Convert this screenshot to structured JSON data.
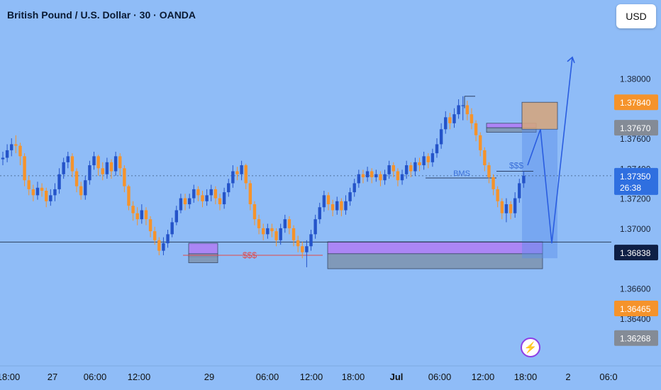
{
  "header": {
    "title": "British Pound / U.S. Dollar · 30 · OANDA"
  },
  "toolbar": {
    "currency_label": "USD"
  },
  "icons": {
    "event_marker": "lightning-icon"
  },
  "colors": {
    "background": "#8fbcf7",
    "bull": "#2453c9",
    "bear": "#f5932b",
    "zone_purple": "#b07df5",
    "zone_grey": "#7e93ae",
    "target_zone": "#d3a57f",
    "projection": "#2a5de0",
    "liquidity_text": "#e04a4a",
    "bms_text": "#3a6fd8"
  },
  "chart_data": {
    "type": "candlestick",
    "title": "British Pound / U.S. Dollar · 30 · OANDA",
    "y_axis": {
      "ticks": [
        "1.38000",
        "1.37600",
        "1.37400",
        "1.37200",
        "1.37000",
        "1.36600",
        "1.36400"
      ],
      "range": [
        1.3612,
        1.3838
      ]
    },
    "x_axis": {
      "ticks": [
        "18:00",
        "27",
        "06:00",
        "12:00",
        "29",
        "06:00",
        "12:00",
        "18:00",
        "Jul",
        "06:00",
        "12:00",
        "18:00",
        "2",
        "06:0"
      ]
    },
    "price_labels": [
      {
        "value": "1.37840",
        "style": "orange"
      },
      {
        "value": "1.37670",
        "style": "grey"
      },
      {
        "value": "1.37350",
        "style": "blue",
        "countdown": "26:38"
      },
      {
        "value": "1.36838",
        "style": "navy"
      },
      {
        "value": "1.36465",
        "style": "orange"
      },
      {
        "value": "1.36268",
        "style": "grey"
      }
    ],
    "annotations": [
      {
        "text": "$$$",
        "kind": "liquidity",
        "price": 1.3682
      },
      {
        "text": "$$$",
        "kind": "liquidity",
        "price": 1.3738
      },
      {
        "text": "BMS",
        "kind": "break-of-market-structure",
        "price": 1.37335
      }
    ],
    "zones": [
      {
        "kind": "demand-purple",
        "top": 1.369,
        "bottom": 1.3681
      },
      {
        "kind": "demand-grey",
        "top": 1.3683,
        "bottom": 1.3677
      },
      {
        "kind": "demand-purple",
        "top": 1.3691,
        "bottom": 1.3683
      },
      {
        "kind": "demand-grey",
        "top": 1.3683,
        "bottom": 1.3673
      },
      {
        "kind": "supply-purple",
        "top": 1.377,
        "bottom": 1.3767
      },
      {
        "kind": "supply-grey",
        "top": 1.3767,
        "bottom": 1.3764
      },
      {
        "kind": "target",
        "top": 1.3784,
        "bottom": 1.3766
      }
    ],
    "projection_path": [
      1.3742,
      1.3766,
      1.369,
      1.3814
    ],
    "candles": [
      [
        1.3746,
        1.3747,
        1.3751,
        1.3742
      ],
      [
        1.3747,
        1.3752,
        1.3756,
        1.3744
      ],
      [
        1.3752,
        1.3756,
        1.376,
        1.3748
      ],
      [
        1.3756,
        1.3755,
        1.3762,
        1.375
      ],
      [
        1.3755,
        1.3748,
        1.3757,
        1.3742
      ],
      [
        1.3748,
        1.3732,
        1.375,
        1.3728
      ],
      [
        1.3732,
        1.3726,
        1.3735,
        1.3722
      ],
      [
        1.3726,
        1.3722,
        1.3729,
        1.3718
      ],
      [
        1.3722,
        1.3727,
        1.3731,
        1.3719
      ],
      [
        1.3727,
        1.3725,
        1.373,
        1.3721
      ],
      [
        1.3725,
        1.3718,
        1.3727,
        1.3714
      ],
      [
        1.3718,
        1.3722,
        1.3726,
        1.3715
      ],
      [
        1.3722,
        1.3726,
        1.373,
        1.3718
      ],
      [
        1.3726,
        1.3736,
        1.374,
        1.3723
      ],
      [
        1.3736,
        1.3744,
        1.3747,
        1.3733
      ],
      [
        1.3744,
        1.3748,
        1.3751,
        1.374
      ],
      [
        1.3748,
        1.3738,
        1.375,
        1.3734
      ],
      [
        1.3738,
        1.3728,
        1.374,
        1.3724
      ],
      [
        1.3728,
        1.3722,
        1.3731,
        1.3719
      ],
      [
        1.3722,
        1.3732,
        1.3735,
        1.3719
      ],
      [
        1.3732,
        1.3742,
        1.3745,
        1.3729
      ],
      [
        1.3742,
        1.3748,
        1.3751,
        1.3739
      ],
      [
        1.3748,
        1.374,
        1.3749,
        1.3735
      ],
      [
        1.374,
        1.3736,
        1.3744,
        1.3732
      ],
      [
        1.3736,
        1.3744,
        1.3747,
        1.3733
      ],
      [
        1.3744,
        1.3738,
        1.3746,
        1.3733
      ],
      [
        1.3738,
        1.3748,
        1.3751,
        1.3735
      ],
      [
        1.3748,
        1.374,
        1.375,
        1.3735
      ],
      [
        1.374,
        1.3728,
        1.3742,
        1.3724
      ],
      [
        1.3728,
        1.3715,
        1.3729,
        1.3712
      ],
      [
        1.3715,
        1.371,
        1.3718,
        1.3705
      ],
      [
        1.371,
        1.3706,
        1.3714,
        1.3702
      ],
      [
        1.3706,
        1.3712,
        1.3716,
        1.3703
      ],
      [
        1.3712,
        1.3706,
        1.3714,
        1.3702
      ],
      [
        1.3706,
        1.3698,
        1.3708,
        1.3694
      ],
      [
        1.3698,
        1.3692,
        1.3701,
        1.3689
      ],
      [
        1.3692,
        1.3685,
        1.3694,
        1.3682
      ],
      [
        1.3685,
        1.369,
        1.3694,
        1.3682
      ],
      [
        1.369,
        1.3696,
        1.3699,
        1.3687
      ],
      [
        1.3696,
        1.3704,
        1.3707,
        1.3694
      ],
      [
        1.3704,
        1.3712,
        1.3715,
        1.3702
      ],
      [
        1.3712,
        1.372,
        1.3723,
        1.371
      ],
      [
        1.372,
        1.3716,
        1.3723,
        1.3712
      ],
      [
        1.3716,
        1.372,
        1.3723,
        1.3713
      ],
      [
        1.372,
        1.3726,
        1.3729,
        1.3717
      ],
      [
        1.3726,
        1.3722,
        1.3728,
        1.3718
      ],
      [
        1.3722,
        1.3718,
        1.3725,
        1.3714
      ],
      [
        1.3718,
        1.3722,
        1.3726,
        1.3715
      ],
      [
        1.3722,
        1.3726,
        1.3729,
        1.3718
      ],
      [
        1.3726,
        1.372,
        1.3728,
        1.3716
      ],
      [
        1.372,
        1.3716,
        1.3723,
        1.3712
      ],
      [
        1.3716,
        1.3724,
        1.3727,
        1.3713
      ],
      [
        1.3724,
        1.373,
        1.3733,
        1.3721
      ],
      [
        1.373,
        1.3738,
        1.3742,
        1.3727
      ],
      [
        1.3738,
        1.3736,
        1.3741,
        1.3732
      ],
      [
        1.3736,
        1.3742,
        1.3745,
        1.3732
      ],
      [
        1.3742,
        1.373,
        1.3743,
        1.3726
      ],
      [
        1.373,
        1.3716,
        1.3732,
        1.3712
      ],
      [
        1.3716,
        1.3706,
        1.3718,
        1.3702
      ],
      [
        1.3706,
        1.37,
        1.3709,
        1.3696
      ],
      [
        1.37,
        1.3696,
        1.3703,
        1.3692
      ],
      [
        1.3696,
        1.37,
        1.3703,
        1.3693
      ],
      [
        1.37,
        1.3698,
        1.3703,
        1.3694
      ],
      [
        1.3698,
        1.3692,
        1.37,
        1.3688
      ],
      [
        1.3692,
        1.37,
        1.3703,
        1.3689
      ],
      [
        1.37,
        1.3706,
        1.3709,
        1.3697
      ],
      [
        1.3706,
        1.37,
        1.3708,
        1.3696
      ],
      [
        1.37,
        1.3692,
        1.3702,
        1.3688
      ],
      [
        1.3692,
        1.3688,
        1.3695,
        1.3684
      ],
      [
        1.3688,
        1.3684,
        1.3691,
        1.368
      ],
      [
        1.3684,
        1.3688,
        1.3692,
        1.3674
      ],
      [
        1.3688,
        1.3696,
        1.3699,
        1.3685
      ],
      [
        1.3696,
        1.3706,
        1.3709,
        1.3693
      ],
      [
        1.3706,
        1.3714,
        1.3717,
        1.3703
      ],
      [
        1.3714,
        1.3722,
        1.3725,
        1.3711
      ],
      [
        1.3722,
        1.3716,
        1.3724,
        1.3712
      ],
      [
        1.3716,
        1.3712,
        1.3719,
        1.3708
      ],
      [
        1.3712,
        1.3718,
        1.3721,
        1.3709
      ],
      [
        1.3718,
        1.3712,
        1.372,
        1.3708
      ],
      [
        1.3712,
        1.3718,
        1.3722,
        1.3709
      ],
      [
        1.3718,
        1.3724,
        1.3727,
        1.3715
      ],
      [
        1.3724,
        1.373,
        1.3733,
        1.3721
      ],
      [
        1.373,
        1.3736,
        1.3739,
        1.3727
      ],
      [
        1.3736,
        1.3734,
        1.3739,
        1.373
      ],
      [
        1.3734,
        1.3738,
        1.3741,
        1.3731
      ],
      [
        1.3738,
        1.3734,
        1.374,
        1.373
      ],
      [
        1.3734,
        1.3736,
        1.3739,
        1.3731
      ],
      [
        1.3736,
        1.3732,
        1.3738,
        1.3728
      ],
      [
        1.3732,
        1.3736,
        1.3739,
        1.3729
      ],
      [
        1.3736,
        1.3742,
        1.3745,
        1.3733
      ],
      [
        1.3742,
        1.3738,
        1.3744,
        1.3734
      ],
      [
        1.3738,
        1.3732,
        1.374,
        1.3728
      ],
      [
        1.3732,
        1.3736,
        1.3739,
        1.3729
      ],
      [
        1.3736,
        1.3742,
        1.3745,
        1.3733
      ],
      [
        1.3742,
        1.3738,
        1.3744,
        1.3734
      ],
      [
        1.3738,
        1.3744,
        1.3747,
        1.3735
      ],
      [
        1.3744,
        1.3742,
        1.3747,
        1.3738
      ],
      [
        1.3742,
        1.3748,
        1.3751,
        1.3739
      ],
      [
        1.3748,
        1.3744,
        1.375,
        1.374
      ],
      [
        1.3744,
        1.375,
        1.3753,
        1.3741
      ],
      [
        1.375,
        1.3756,
        1.376,
        1.3747
      ],
      [
        1.3756,
        1.3766,
        1.377,
        1.3753
      ],
      [
        1.3766,
        1.3774,
        1.3778,
        1.3763
      ],
      [
        1.3774,
        1.377,
        1.3777,
        1.3766
      ],
      [
        1.377,
        1.3776,
        1.378,
        1.3767
      ],
      [
        1.3776,
        1.3782,
        1.3786,
        1.3773
      ],
      [
        1.3782,
        1.3782,
        1.3788,
        1.3772
      ],
      [
        1.3782,
        1.3776,
        1.3785,
        1.3772
      ],
      [
        1.3776,
        1.377,
        1.378,
        1.3766
      ],
      [
        1.377,
        1.3762,
        1.3772,
        1.3758
      ],
      [
        1.3762,
        1.3752,
        1.3764,
        1.3748
      ],
      [
        1.3752,
        1.3742,
        1.3754,
        1.3738
      ],
      [
        1.3742,
        1.3734,
        1.3744,
        1.373
      ],
      [
        1.3734,
        1.3726,
        1.3736,
        1.3722
      ],
      [
        1.3726,
        1.3718,
        1.3728,
        1.3714
      ],
      [
        1.3718,
        1.371,
        1.372,
        1.3706
      ],
      [
        1.371,
        1.3716,
        1.372,
        1.3704
      ],
      [
        1.3716,
        1.371,
        1.3718,
        1.3706
      ],
      [
        1.371,
        1.372,
        1.3724,
        1.3707
      ],
      [
        1.372,
        1.373,
        1.3733,
        1.3717
      ],
      [
        1.373,
        1.3735,
        1.3738,
        1.3727
      ]
    ]
  }
}
